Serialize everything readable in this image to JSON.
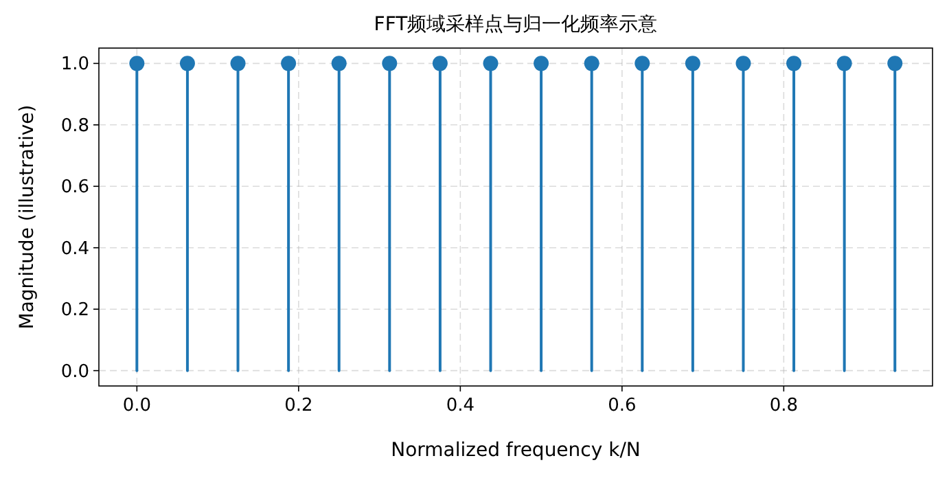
{
  "chart_data": {
    "type": "lollipop",
    "title": "FFT频域采样点与归一化频率示意",
    "xlabel": "Normalized frequency k/N",
    "ylabel": "Magnitude (illustrative)",
    "x": [
      0,
      0.0625,
      0.125,
      0.1875,
      0.25,
      0.3125,
      0.375,
      0.4375,
      0.5,
      0.5625,
      0.625,
      0.6875,
      0.75,
      0.8125,
      0.875,
      0.9375
    ],
    "series": [
      {
        "color": "#1f77b4",
        "values": [
          1,
          1,
          1,
          1,
          1,
          1,
          1,
          1,
          1,
          1,
          1,
          1,
          1,
          1,
          1,
          1
        ]
      }
    ],
    "xlim": [
      -0.047,
      0.984
    ],
    "ylim": [
      -0.05,
      1.05
    ],
    "xticks": [
      {
        "value": 0,
        "label": "0.0"
      },
      0.2,
      0.4,
      0.6,
      0.8
    ],
    "yticks": [
      {
        "value": 0,
        "label": "0.0"
      },
      0.2,
      0.4,
      0.6,
      0.8,
      {
        "value": 1,
        "label": "1.0"
      }
    ],
    "grid": true,
    "marker": "circle",
    "line_style": "solid"
  }
}
